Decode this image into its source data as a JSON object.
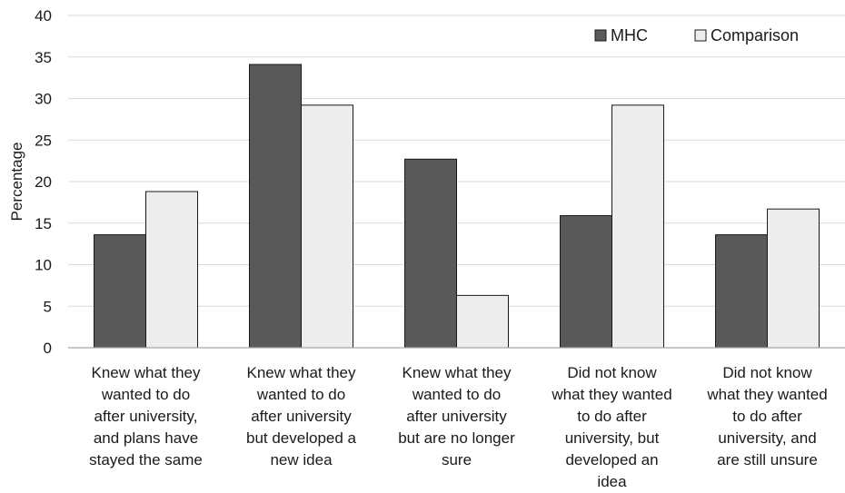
{
  "chart_data": {
    "type": "bar",
    "ylabel": "Percentage",
    "ylim": [
      0,
      40
    ],
    "yticks": [
      0,
      5,
      10,
      15,
      20,
      25,
      30,
      35,
      40
    ],
    "grid": true,
    "legend_position": "top-right",
    "categories": [
      [
        "Knew what they",
        "wanted to do",
        "after university,",
        "and plans have",
        "stayed the same"
      ],
      [
        "Knew what they",
        "wanted to do",
        "after university",
        "but developed a",
        "new idea"
      ],
      [
        "Knew what they",
        "wanted to do",
        "after university",
        "but are no longer",
        "sure"
      ],
      [
        "Did not know",
        "what they wanted",
        "to do after",
        "university, but",
        "developed an",
        "idea"
      ],
      [
        "Did not know",
        "what they wanted",
        "to do after",
        "university, and",
        "are still unsure"
      ]
    ],
    "series": [
      {
        "name": "MHC",
        "color": "#595959",
        "values": [
          13.6,
          34.1,
          22.7,
          15.9,
          13.6
        ]
      },
      {
        "name": "Comparison",
        "color": "#ededed",
        "values": [
          18.8,
          29.2,
          6.3,
          29.2,
          16.7
        ]
      }
    ]
  }
}
